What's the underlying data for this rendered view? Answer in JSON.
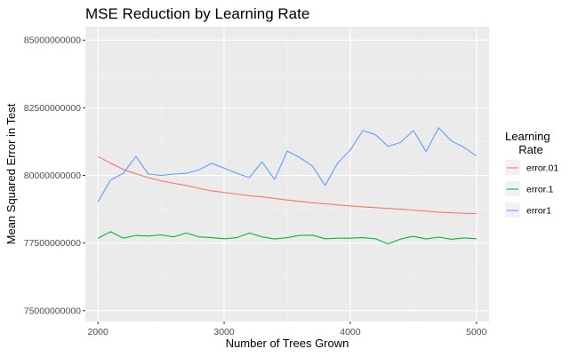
{
  "chart_data": {
    "type": "line",
    "title": "MSE Reduction by Learning Rate",
    "xlabel": "Number of Trees Grown",
    "ylabel": "Mean Squared Error in Test",
    "xlim": [
      1900,
      5100
    ],
    "ylim": [
      74600000000,
      85500000000
    ],
    "x_ticks": [
      2000,
      3000,
      4000,
      5000
    ],
    "x_tick_labels": [
      "2000",
      "3000",
      "4000",
      "5000"
    ],
    "y_ticks": [
      75000000000,
      77500000000,
      80000000000,
      82500000000,
      85000000000
    ],
    "y_tick_labels": [
      "75000000000",
      "77500000000",
      "80000000000",
      "82500000000",
      "85000000000"
    ],
    "grid": true,
    "legend": {
      "title_lines": [
        "Learning",
        "Rate"
      ],
      "placement": "right"
    },
    "x": [
      2000,
      2100,
      2200,
      2300,
      2400,
      2500,
      2600,
      2700,
      2800,
      2900,
      3000,
      3100,
      3200,
      3300,
      3400,
      3500,
      3600,
      3700,
      3800,
      3900,
      4000,
      4100,
      4200,
      4300,
      4400,
      4500,
      4600,
      4700,
      4800,
      4900,
      5000
    ],
    "series": [
      {
        "name": "error.01",
        "color": "#F8766D",
        "values": [
          80700000000,
          80450000000,
          80220000000,
          80060000000,
          79920000000,
          79800000000,
          79710000000,
          79630000000,
          79520000000,
          79430000000,
          79370000000,
          79310000000,
          79250000000,
          79210000000,
          79150000000,
          79090000000,
          79040000000,
          78990000000,
          78950000000,
          78910000000,
          78870000000,
          78840000000,
          78810000000,
          78780000000,
          78750000000,
          78720000000,
          78680000000,
          78640000000,
          78620000000,
          78600000000,
          78590000000
        ]
      },
      {
        "name": "error.1",
        "color": "#00BA38",
        "values": [
          77680000000,
          77920000000,
          77680000000,
          77780000000,
          77760000000,
          77800000000,
          77730000000,
          77870000000,
          77730000000,
          77700000000,
          77660000000,
          77700000000,
          77870000000,
          77730000000,
          77650000000,
          77700000000,
          77780000000,
          77790000000,
          77660000000,
          77680000000,
          77680000000,
          77700000000,
          77660000000,
          77470000000,
          77650000000,
          77750000000,
          77650000000,
          77720000000,
          77640000000,
          77690000000,
          77660000000
        ]
      },
      {
        "name": "error1",
        "color": "#619CFF",
        "values": [
          79030000000,
          79830000000,
          80080000000,
          80700000000,
          80050000000,
          80000000000,
          80050000000,
          80080000000,
          80200000000,
          80450000000,
          80270000000,
          80080000000,
          79920000000,
          80500000000,
          79850000000,
          80900000000,
          80660000000,
          80350000000,
          79630000000,
          80460000000,
          80940000000,
          81660000000,
          81500000000,
          81070000000,
          81230000000,
          81660000000,
          80880000000,
          81760000000,
          81280000000,
          81040000000,
          80720000000
        ]
      }
    ]
  }
}
